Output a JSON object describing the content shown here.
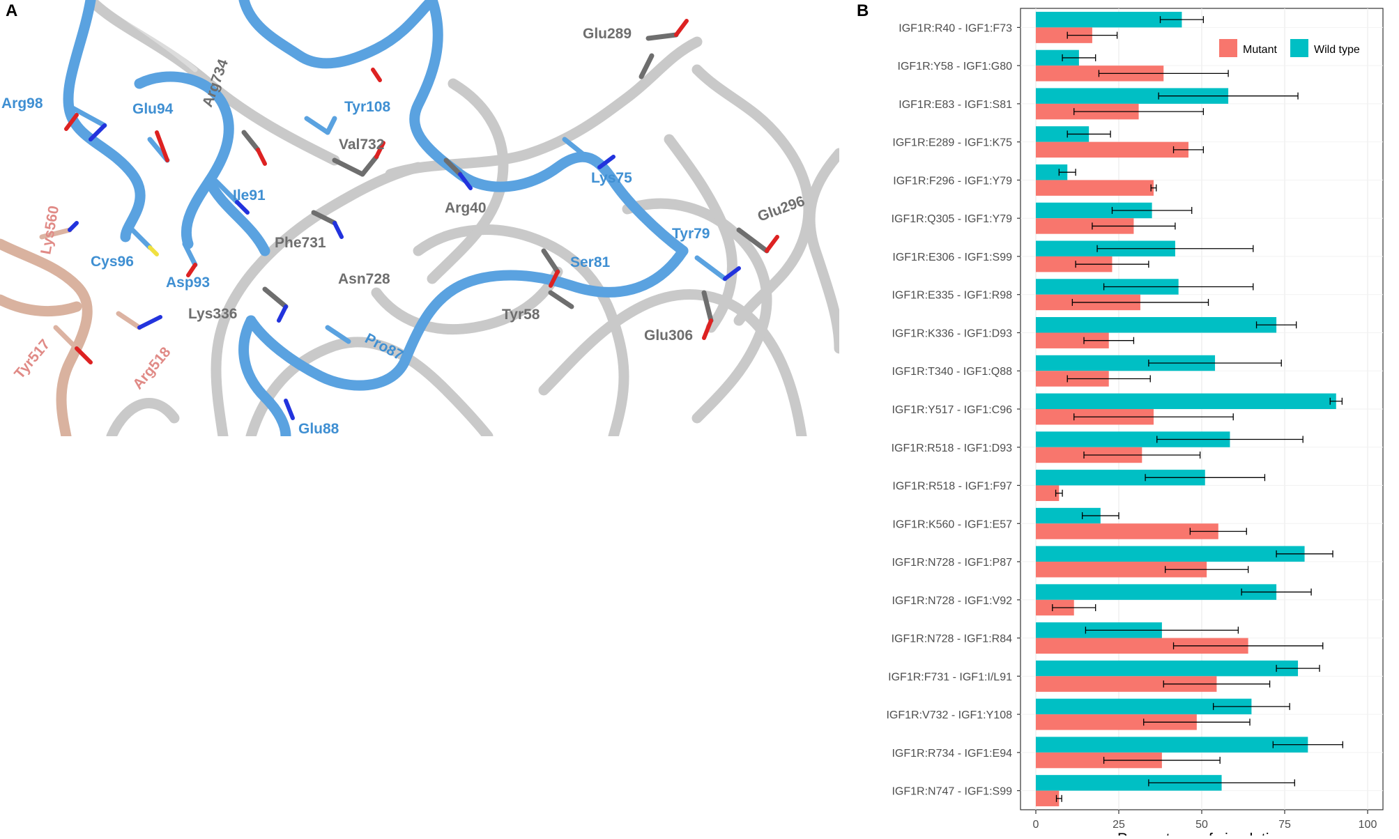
{
  "panel_a": {
    "letter": "A",
    "residue_labels": [
      {
        "text": "Arg98",
        "group": "igf1"
      },
      {
        "text": "Glu94",
        "group": "igf1"
      },
      {
        "text": "Cys96",
        "group": "igf1"
      },
      {
        "text": "Asp93",
        "group": "igf1"
      },
      {
        "text": "Ile91",
        "group": "igf1"
      },
      {
        "text": "Tyr108",
        "group": "igf1"
      },
      {
        "text": "Lys75",
        "group": "igf1"
      },
      {
        "text": "Ser81",
        "group": "igf1"
      },
      {
        "text": "Tyr79",
        "group": "igf1"
      },
      {
        "text": "Pro87",
        "group": "igf1"
      },
      {
        "text": "Glu88",
        "group": "igf1"
      },
      {
        "text": "Arg734",
        "group": "receptor"
      },
      {
        "text": "Val732",
        "group": "receptor"
      },
      {
        "text": "Phe731",
        "group": "receptor"
      },
      {
        "text": "Asn728",
        "group": "receptor"
      },
      {
        "text": "Lys336",
        "group": "receptor"
      },
      {
        "text": "Arg40",
        "group": "receptor"
      },
      {
        "text": "Glu289",
        "group": "receptor"
      },
      {
        "text": "Glu296",
        "group": "receptor"
      },
      {
        "text": "Tyr58",
        "group": "receptor"
      },
      {
        "text": "Glu306",
        "group": "receptor"
      },
      {
        "text": "Lys560",
        "group": "other"
      },
      {
        "text": "Tyr517",
        "group": "other"
      },
      {
        "text": "Arg518",
        "group": "other"
      }
    ],
    "colors": {
      "igf1": "#3f8fd2",
      "receptor": "#6e6e6e",
      "other": "#e08a86",
      "ribbon_igf1": "#5aa2e0",
      "ribbon_receptor": "#d4d4d4",
      "ribbon_other": "#dcb3a2",
      "nitrogen": "#2233dd",
      "oxygen": "#dd2222",
      "sulfur": "#f0e040"
    }
  },
  "panel_b": {
    "letter": "B"
  },
  "chart_data": {
    "type": "bar",
    "orientation": "horizontal",
    "title": "",
    "xlabel": "Percentage of simulation",
    "ylabel": "",
    "xlim": [
      0,
      100
    ],
    "xticks": [
      0,
      25,
      50,
      75,
      100
    ],
    "grid": true,
    "legend": {
      "position": "top-right"
    },
    "categories": [
      "IGF1R:R40 - IGF1:F73",
      "IGF1R:Y58 - IGF1:G80",
      "IGF1R:E83 - IGF1:S81",
      "IGF1R:E289 - IGF1:K75",
      "IGF1R:F296 - IGF1:Y79",
      "IGF1R:Q305 - IGF1:Y79",
      "IGF1R:E306 - IGF1:S99",
      "IGF1R:E335 - IGF1:R98",
      "IGF1R:K336 - IGF1:D93",
      "IGF1R:T340 - IGF1:Q88",
      "IGF1R:Y517 - IGF1:C96",
      "IGF1R:R518 - IGF1:D93",
      "IGF1R:R518 - IGF1:F97",
      "IGF1R:K560 - IGF1:E57",
      "IGF1R:N728 - IGF1:P87",
      "IGF1R:N728 - IGF1:V92",
      "IGF1R:N728 - IGF1:R84",
      "IGF1R:F731 - IGF1:I/L91",
      "IGF1R:V732 - IGF1:Y108",
      "IGF1R:R734 - IGF1:E94",
      "IGF1R:N747 - IGF1:S99"
    ],
    "series": [
      {
        "name": "Mutant",
        "color": "#f8766d",
        "values": [
          17,
          38.5,
          31,
          46,
          35.5,
          29.5,
          23,
          31.5,
          22,
          22,
          35.5,
          32,
          7,
          55,
          51.5,
          11.5,
          64,
          54.5,
          48.5,
          38,
          7
        ],
        "errors": [
          7.5,
          19.5,
          19.5,
          4.5,
          0.8,
          12.5,
          11,
          20.5,
          7.5,
          12.5,
          24,
          17.5,
          1,
          8.5,
          12.5,
          6.5,
          22.5,
          16,
          16,
          17.5,
          0.8
        ]
      },
      {
        "name": "Wild type",
        "color": "#00bfc4",
        "values": [
          44,
          13,
          58,
          16,
          9.5,
          35,
          42,
          43,
          72.5,
          54,
          90.5,
          58.5,
          51,
          19.5,
          81,
          72.5,
          38,
          79,
          65,
          82,
          56
        ],
        "errors": [
          6.5,
          5,
          21,
          6.5,
          2.5,
          12,
          23.5,
          22.5,
          6,
          20,
          1.8,
          22,
          18,
          5.5,
          8.5,
          10.5,
          23,
          6.5,
          11.5,
          10.5,
          22
        ]
      }
    ]
  }
}
